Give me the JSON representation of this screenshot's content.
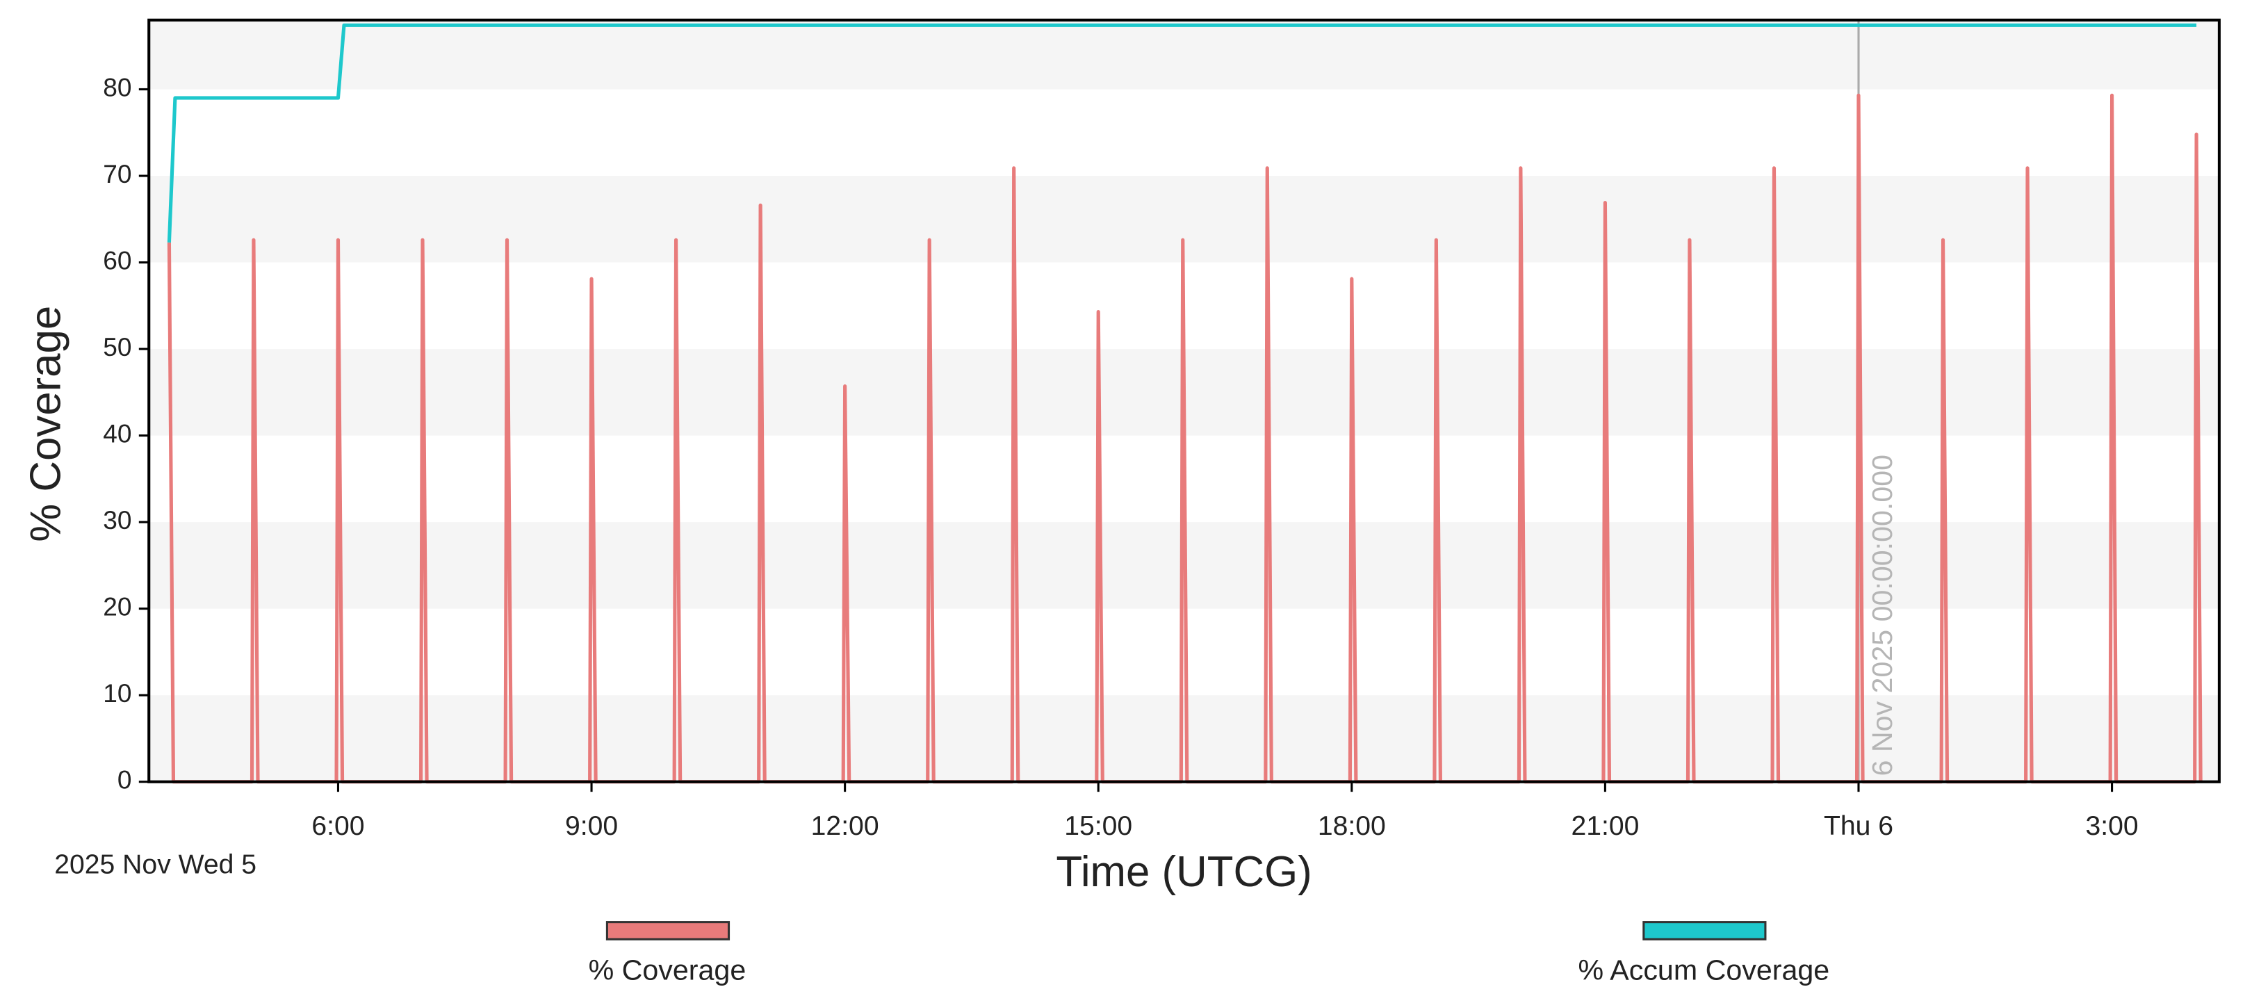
{
  "chart_data": {
    "type": "line",
    "ylabel": "% Coverage",
    "xlabel": "Time (UTCG)",
    "date_label": "2025 Nov Wed 5",
    "xlim": [
      3.76,
      28.27
    ],
    "ylim": [
      0,
      88
    ],
    "xticks": [
      {
        "value": 6,
        "label": "6:00"
      },
      {
        "value": 9,
        "label": "9:00"
      },
      {
        "value": 12,
        "label": "12:00"
      },
      {
        "value": 15,
        "label": "15:00"
      },
      {
        "value": 18,
        "label": "18:00"
      },
      {
        "value": 21,
        "label": "21:00"
      },
      {
        "value": 24,
        "label": "Thu 6"
      },
      {
        "value": 27,
        "label": "3:00"
      }
    ],
    "yticks": [
      0,
      10,
      20,
      30,
      40,
      50,
      60,
      70,
      80
    ],
    "grid": "bands",
    "cursor": {
      "x": 24,
      "label": "6 Nov 2025 00:00:00.000"
    },
    "series": [
      {
        "name": "% Coverage",
        "color": "#e87b7b",
        "x": [
          4,
          4.05,
          4.98,
          5,
          5.05,
          5.98,
          6,
          6.05,
          6.98,
          7,
          7.05,
          7.98,
          8,
          8.05,
          8.98,
          9,
          9.05,
          9.98,
          10,
          10.05,
          10.98,
          11,
          11.05,
          11.98,
          12,
          12.05,
          12.98,
          13,
          13.05,
          13.98,
          14,
          14.05,
          14.98,
          15,
          15.05,
          15.98,
          16,
          16.05,
          16.98,
          17,
          17.05,
          17.98,
          18,
          18.05,
          18.98,
          19,
          19.05,
          19.98,
          20,
          20.05,
          20.98,
          21,
          21.05,
          21.98,
          22,
          22.05,
          22.98,
          23,
          23.05,
          23.98,
          24,
          24.05,
          24.98,
          25,
          25.05,
          25.98,
          26,
          26.05,
          26.98,
          27,
          27.05,
          27.98,
          28,
          28.05
        ],
        "values": [
          62.3,
          0,
          0,
          62.6,
          0,
          0,
          62.6,
          0,
          0,
          62.6,
          0,
          0,
          62.6,
          0,
          0,
          58.1,
          0,
          0,
          62.6,
          0,
          0,
          66.6,
          0,
          0,
          45.7,
          0,
          0,
          62.6,
          0,
          0,
          70.9,
          0,
          0,
          54.3,
          0,
          0,
          62.6,
          0,
          0,
          70.9,
          0,
          0,
          58.1,
          0,
          0,
          62.6,
          0,
          0,
          70.9,
          0,
          0,
          66.9,
          0,
          0,
          62.6,
          0,
          0,
          70.9,
          0,
          0,
          79.3,
          0,
          0,
          62.6,
          0,
          0,
          70.9,
          0,
          0,
          79.3,
          0,
          0,
          74.8,
          0
        ]
      },
      {
        "name": "% Accum Coverage",
        "color": "#1ec8cc",
        "x": [
          4,
          4.07,
          6,
          6.07,
          28
        ],
        "values": [
          62.3,
          79,
          79,
          87.4,
          87.4
        ]
      }
    ]
  }
}
